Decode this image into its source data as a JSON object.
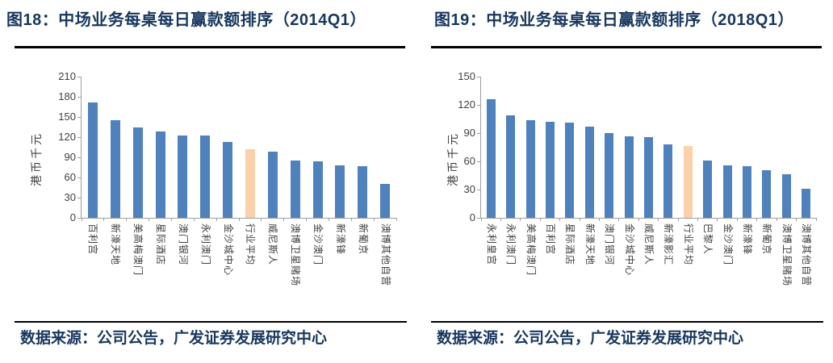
{
  "panels": [
    {
      "title": "图18：中场业务每桌每日赢款额排序（2014Q1）",
      "source": "数据来源：公司公告，广发证券发展研究中心"
    },
    {
      "title": "图19：中场业务每桌每日赢款额排序（2018Q1）",
      "source": "数据来源：公司公告，广发证券发展研究中心"
    }
  ],
  "colors": {
    "bar": "#4F81BD",
    "highlight": "#FAD1A8",
    "title_text": "#17375E",
    "axis": "#9E9E9E",
    "tick_text": "#3F3F3F",
    "rule": "#000000"
  },
  "chart_data": [
    {
      "type": "bar",
      "title": "图18：中场业务每桌每日赢款额排序（2014Q1）",
      "xlabel": "",
      "ylabel": "港币千元",
      "ylim": [
        0,
        210
      ],
      "ytick_step": 30,
      "grid": false,
      "legend": "none",
      "categories": [
        "百利宫",
        "新濠天地",
        "美高梅澳门",
        "星际酒店",
        "澳门银河",
        "永利澳门",
        "金沙城中心",
        "行业平均",
        "威尼斯人",
        "澳博卫星赌场",
        "金沙澳门",
        "新濠锋",
        "新葡京",
        "澳博其他自营"
      ],
      "values": [
        172,
        145,
        135,
        128,
        123,
        122,
        113,
        102,
        98,
        85,
        84,
        78,
        77,
        51
      ],
      "highlight_category": "行业平均"
    },
    {
      "type": "bar",
      "title": "图19：中场业务每桌每日赢款额排序（2018Q1）",
      "xlabel": "",
      "ylabel": "港币千元",
      "ylim": [
        0,
        150
      ],
      "ytick_step": 30,
      "grid": false,
      "legend": "none",
      "categories": [
        "永利皇宫",
        "永利澳门",
        "美高梅澳门",
        "百利宫",
        "星际酒店",
        "新濠天地",
        "澳门银河",
        "金沙城中心",
        "威尼斯人",
        "新濠影汇",
        "行业平均",
        "巴黎人",
        "金沙澳门",
        "新濠锋",
        "新葡京",
        "澳博卫星赌场",
        "澳博其他自营"
      ],
      "values": [
        126,
        109,
        104,
        102,
        101,
        97,
        90,
        87,
        86,
        78,
        76,
        61,
        56,
        55,
        51,
        46,
        31
      ],
      "highlight_category": "行业平均"
    }
  ]
}
